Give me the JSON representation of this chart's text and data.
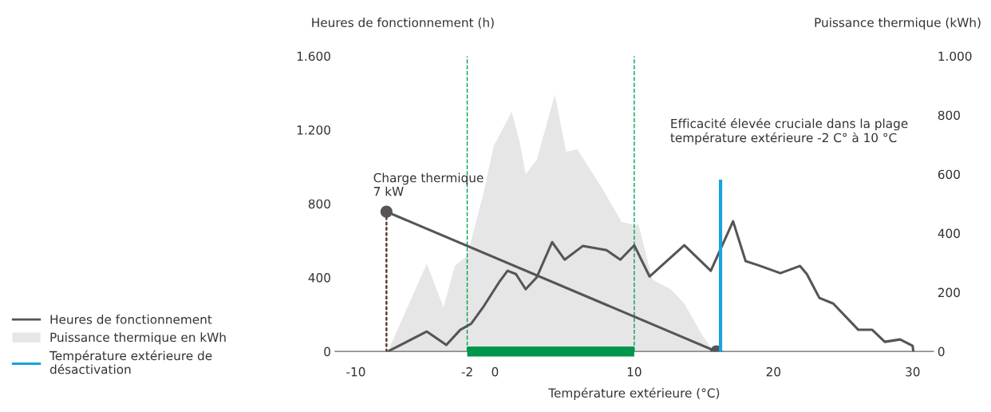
{
  "chart_data": {
    "type": "line",
    "xlabel": "Température extérieure (°C)",
    "ylabel": "Heures de fonctionnement (h)",
    "y2label": "Puissance thermique (kWh)",
    "xlim": [
      -11.5,
      31.5
    ],
    "xticks": [
      -10,
      -2,
      0,
      10,
      20,
      30
    ],
    "ylim": [
      0,
      1600
    ],
    "yticks": [
      0,
      400,
      800,
      {
        "value": 1200,
        "label": "1.200"
      },
      {
        "value": 1600,
        "label": "1.600"
      }
    ],
    "y2lim": [
      0,
      1000
    ],
    "y2ticks": [
      0,
      200,
      400,
      600,
      800,
      {
        "value": 1000,
        "label": "1.000"
      }
    ],
    "grid": false,
    "legend": "left",
    "marker": "none",
    "line_style": "solid",
    "series": [
      {
        "name": "Heures de fonctionnement",
        "color": "#555555",
        "x": [
          -7.7,
          -4.9,
          -3.5,
          -2.5,
          -1.7,
          -0.8,
          0.3,
          0.9,
          1.5,
          2.2,
          3.0,
          4.1,
          5.0,
          6.3,
          8.0,
          9.0,
          10.0,
          11.1,
          13.6,
          15.5,
          17.1,
          18.0,
          18.9,
          20.5,
          21.9,
          22.4,
          23.3,
          24.3,
          26.1,
          27.1,
          28.0,
          29.1,
          30.0,
          30.05
        ],
        "values": [
          0,
          108,
          35,
          117,
          151,
          246,
          376,
          437,
          419,
          337,
          402,
          592,
          497,
          571,
          549,
          497,
          575,
          406,
          575,
          437,
          705,
          489,
          467,
          424,
          463,
          419,
          290,
          259,
          117,
          117,
          52,
          65,
          30,
          0
        ]
      },
      {
        "type": "area",
        "name": "Puissance thermique en kWh",
        "color": "#e6e6e6",
        "axis": "y2",
        "x": [
          -7.7,
          -4.9,
          -3.7,
          -2.9,
          -2.0,
          -0.8,
          -0.1,
          1.2,
          1.8,
          2.2,
          3.0,
          4.3,
          5.1,
          5.9,
          7.6,
          9.1,
          10.1,
          10.3,
          11.3,
          12.6,
          13.6,
          14.9,
          15.6,
          16.0
        ],
        "values": [
          0,
          297,
          149,
          289,
          324,
          541,
          695,
          811,
          703,
          600,
          649,
          870,
          676,
          684,
          560,
          438,
          427,
          432,
          243,
          211,
          162,
          54,
          8,
          0
        ]
      },
      {
        "color": "#5a3c32",
        "line_style": "dotted",
        "x": [
          -7.8,
          -7.8
        ],
        "values": [
          0,
          757
        ]
      },
      {
        "color": "#555555",
        "marker": "circle",
        "x": [
          -7.8,
          15.9
        ],
        "values": [
          757,
          0
        ]
      },
      {
        "name": "Température extérieure de\ndésactivation",
        "color": "#1aa3dd",
        "x": [
          16.2,
          16.2
        ],
        "values": [
          0,
          930
        ]
      },
      {
        "color": "#00964b",
        "x": [
          -2,
          10
        ],
        "values": [
          0,
          0
        ]
      }
    ],
    "ref_lines": [
      {
        "axis": "x",
        "value": -2,
        "color": "#00a050",
        "line_style": "dashed"
      },
      {
        "axis": "x",
        "value": 10,
        "color": "#00a050",
        "line_style": "dashed"
      }
    ],
    "annotations": [
      {
        "text": "Charge thermique\n7 kW",
        "x": -7.8,
        "y": 757
      },
      "Efficacité élevée cruciale dans la plage\ntempérature extérieure -2 C° à 10 °C"
    ]
  }
}
